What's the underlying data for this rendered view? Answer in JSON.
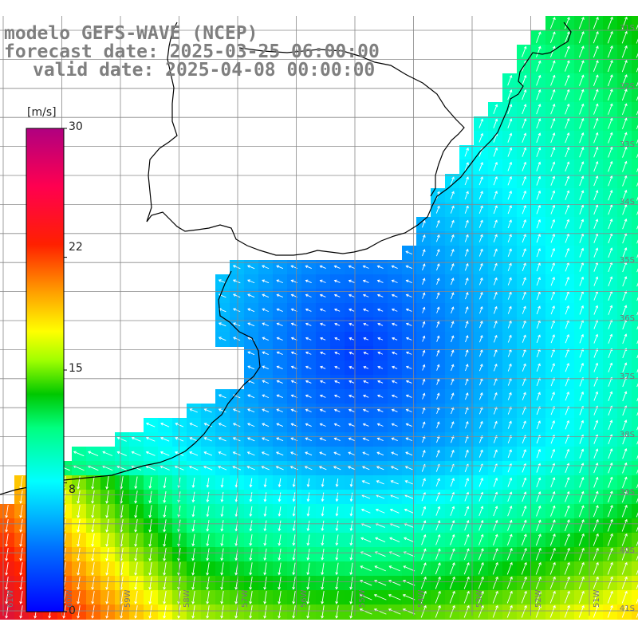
{
  "title": {
    "line1": "modelo GEFS-WAVE (NCEP)",
    "line2": "forecast date: 2025-03-25 06:00:00",
    "line3": "valid date: 2025-04-08 00:00:00"
  },
  "colorbar": {
    "units": "[m/s]",
    "ticks": [
      {
        "label": "30",
        "value": 30
      },
      {
        "label": "22",
        "value": 22
      },
      {
        "label": "15",
        "value": 15
      },
      {
        "label": "8",
        "value": 8
      },
      {
        "label": "0",
        "value": 0
      }
    ],
    "range": [
      0,
      30
    ],
    "palette": [
      "#0000ff",
      "#00a0ff",
      "#00ffff",
      "#00ff80",
      "#00d000",
      "#80ff00",
      "#ffff00",
      "#ffa000",
      "#ff4000",
      "#ff0000",
      "#ff0066",
      "#b00080"
    ]
  },
  "map": {
    "land_color": "#ffffff",
    "coast_color": "#000000",
    "grid_color": "#888888",
    "vector_color": "#ffffff",
    "lat_labels": [
      "31S",
      "32S",
      "33S",
      "34S",
      "35S",
      "36S",
      "37S",
      "38S",
      "39S",
      "40S",
      "41S"
    ],
    "lon_labels": [
      "61W",
      "60W",
      "59W",
      "58W",
      "57W",
      "56W",
      "55W",
      "54W",
      "53W",
      "52W",
      "51W"
    ]
  }
}
